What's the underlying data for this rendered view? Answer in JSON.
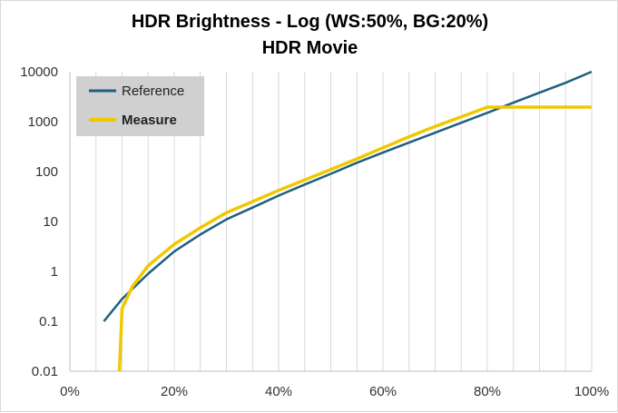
{
  "chart_data": {
    "type": "line",
    "title": "HDR Brightness - Log (WS:50%, BG:20%)",
    "subtitle": "HDR Movie",
    "xlabel": "",
    "ylabel": "",
    "xlim": [
      0,
      100
    ],
    "ylim": [
      0.01,
      10000
    ],
    "y_scale": "log",
    "x_ticks": [
      "0%",
      "20%",
      "40%",
      "60%",
      "80%",
      "100%"
    ],
    "y_ticks": [
      "0.01",
      "0.1",
      "1",
      "10",
      "100",
      "1000",
      "10000"
    ],
    "grid": "vertical minor gridlines every 5%",
    "legend_position": "top-left",
    "series": [
      {
        "name": "Reference",
        "color": "#1f5f7f",
        "x": [
          6.5,
          10,
          15,
          20,
          25,
          30,
          35,
          40,
          45,
          50,
          55,
          60,
          65,
          70,
          75,
          80,
          85,
          90,
          95,
          100
        ],
        "y": [
          0.1,
          0.28,
          0.9,
          2.5,
          5.5,
          11,
          19,
          33,
          55,
          90,
          150,
          240,
          380,
          600,
          950,
          1500,
          2400,
          3800,
          6000,
          10000
        ]
      },
      {
        "name": "Measure",
        "color": "#f0c800",
        "x": [
          9.5,
          10,
          12,
          15,
          20,
          25,
          30,
          35,
          40,
          45,
          50,
          55,
          60,
          65,
          70,
          75,
          80,
          82,
          85,
          90,
          95,
          100
        ],
        "y": [
          0.01,
          0.18,
          0.5,
          1.3,
          3.5,
          7.5,
          15,
          25,
          42,
          68,
          110,
          180,
          300,
          500,
          800,
          1250,
          1950,
          1950,
          1950,
          1950,
          1950,
          1950
        ]
      }
    ]
  },
  "legend": {
    "reference_label": "Reference",
    "measure_label": "Measure"
  }
}
